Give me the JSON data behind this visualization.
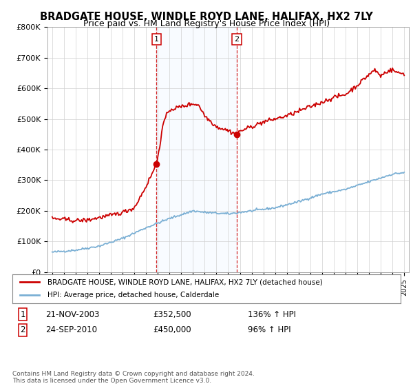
{
  "title": "BRADGATE HOUSE, WINDLE ROYD LANE, HALIFAX, HX2 7LY",
  "subtitle": "Price paid vs. HM Land Registry's House Price Index (HPI)",
  "legend_line1": "BRADGATE HOUSE, WINDLE ROYD LANE, HALIFAX, HX2 7LY (detached house)",
  "legend_line2": "HPI: Average price, detached house, Calderdale",
  "footer": "Contains HM Land Registry data © Crown copyright and database right 2024.\nThis data is licensed under the Open Government Licence v3.0.",
  "transaction1_date": "21-NOV-2003",
  "transaction1_price": "£352,500",
  "transaction1_hpi": "136% ↑ HPI",
  "transaction2_date": "24-SEP-2010",
  "transaction2_price": "£450,000",
  "transaction2_hpi": "96% ↑ HPI",
  "red_color": "#cc0000",
  "blue_color": "#7aafd4",
  "shade_color": "#ddeeff",
  "ylim": [
    0,
    800000
  ],
  "yticks": [
    0,
    100000,
    200000,
    300000,
    400000,
    500000,
    600000,
    700000,
    800000
  ],
  "ytick_labels": [
    "£0",
    "£100K",
    "£200K",
    "£300K",
    "£400K",
    "£500K",
    "£600K",
    "£700K",
    "£800K"
  ],
  "xlim_start": 1994.6,
  "xlim_end": 2025.4,
  "transaction1_x": 2003.89,
  "transaction1_y": 352500,
  "transaction2_x": 2010.73,
  "transaction2_y": 450000
}
